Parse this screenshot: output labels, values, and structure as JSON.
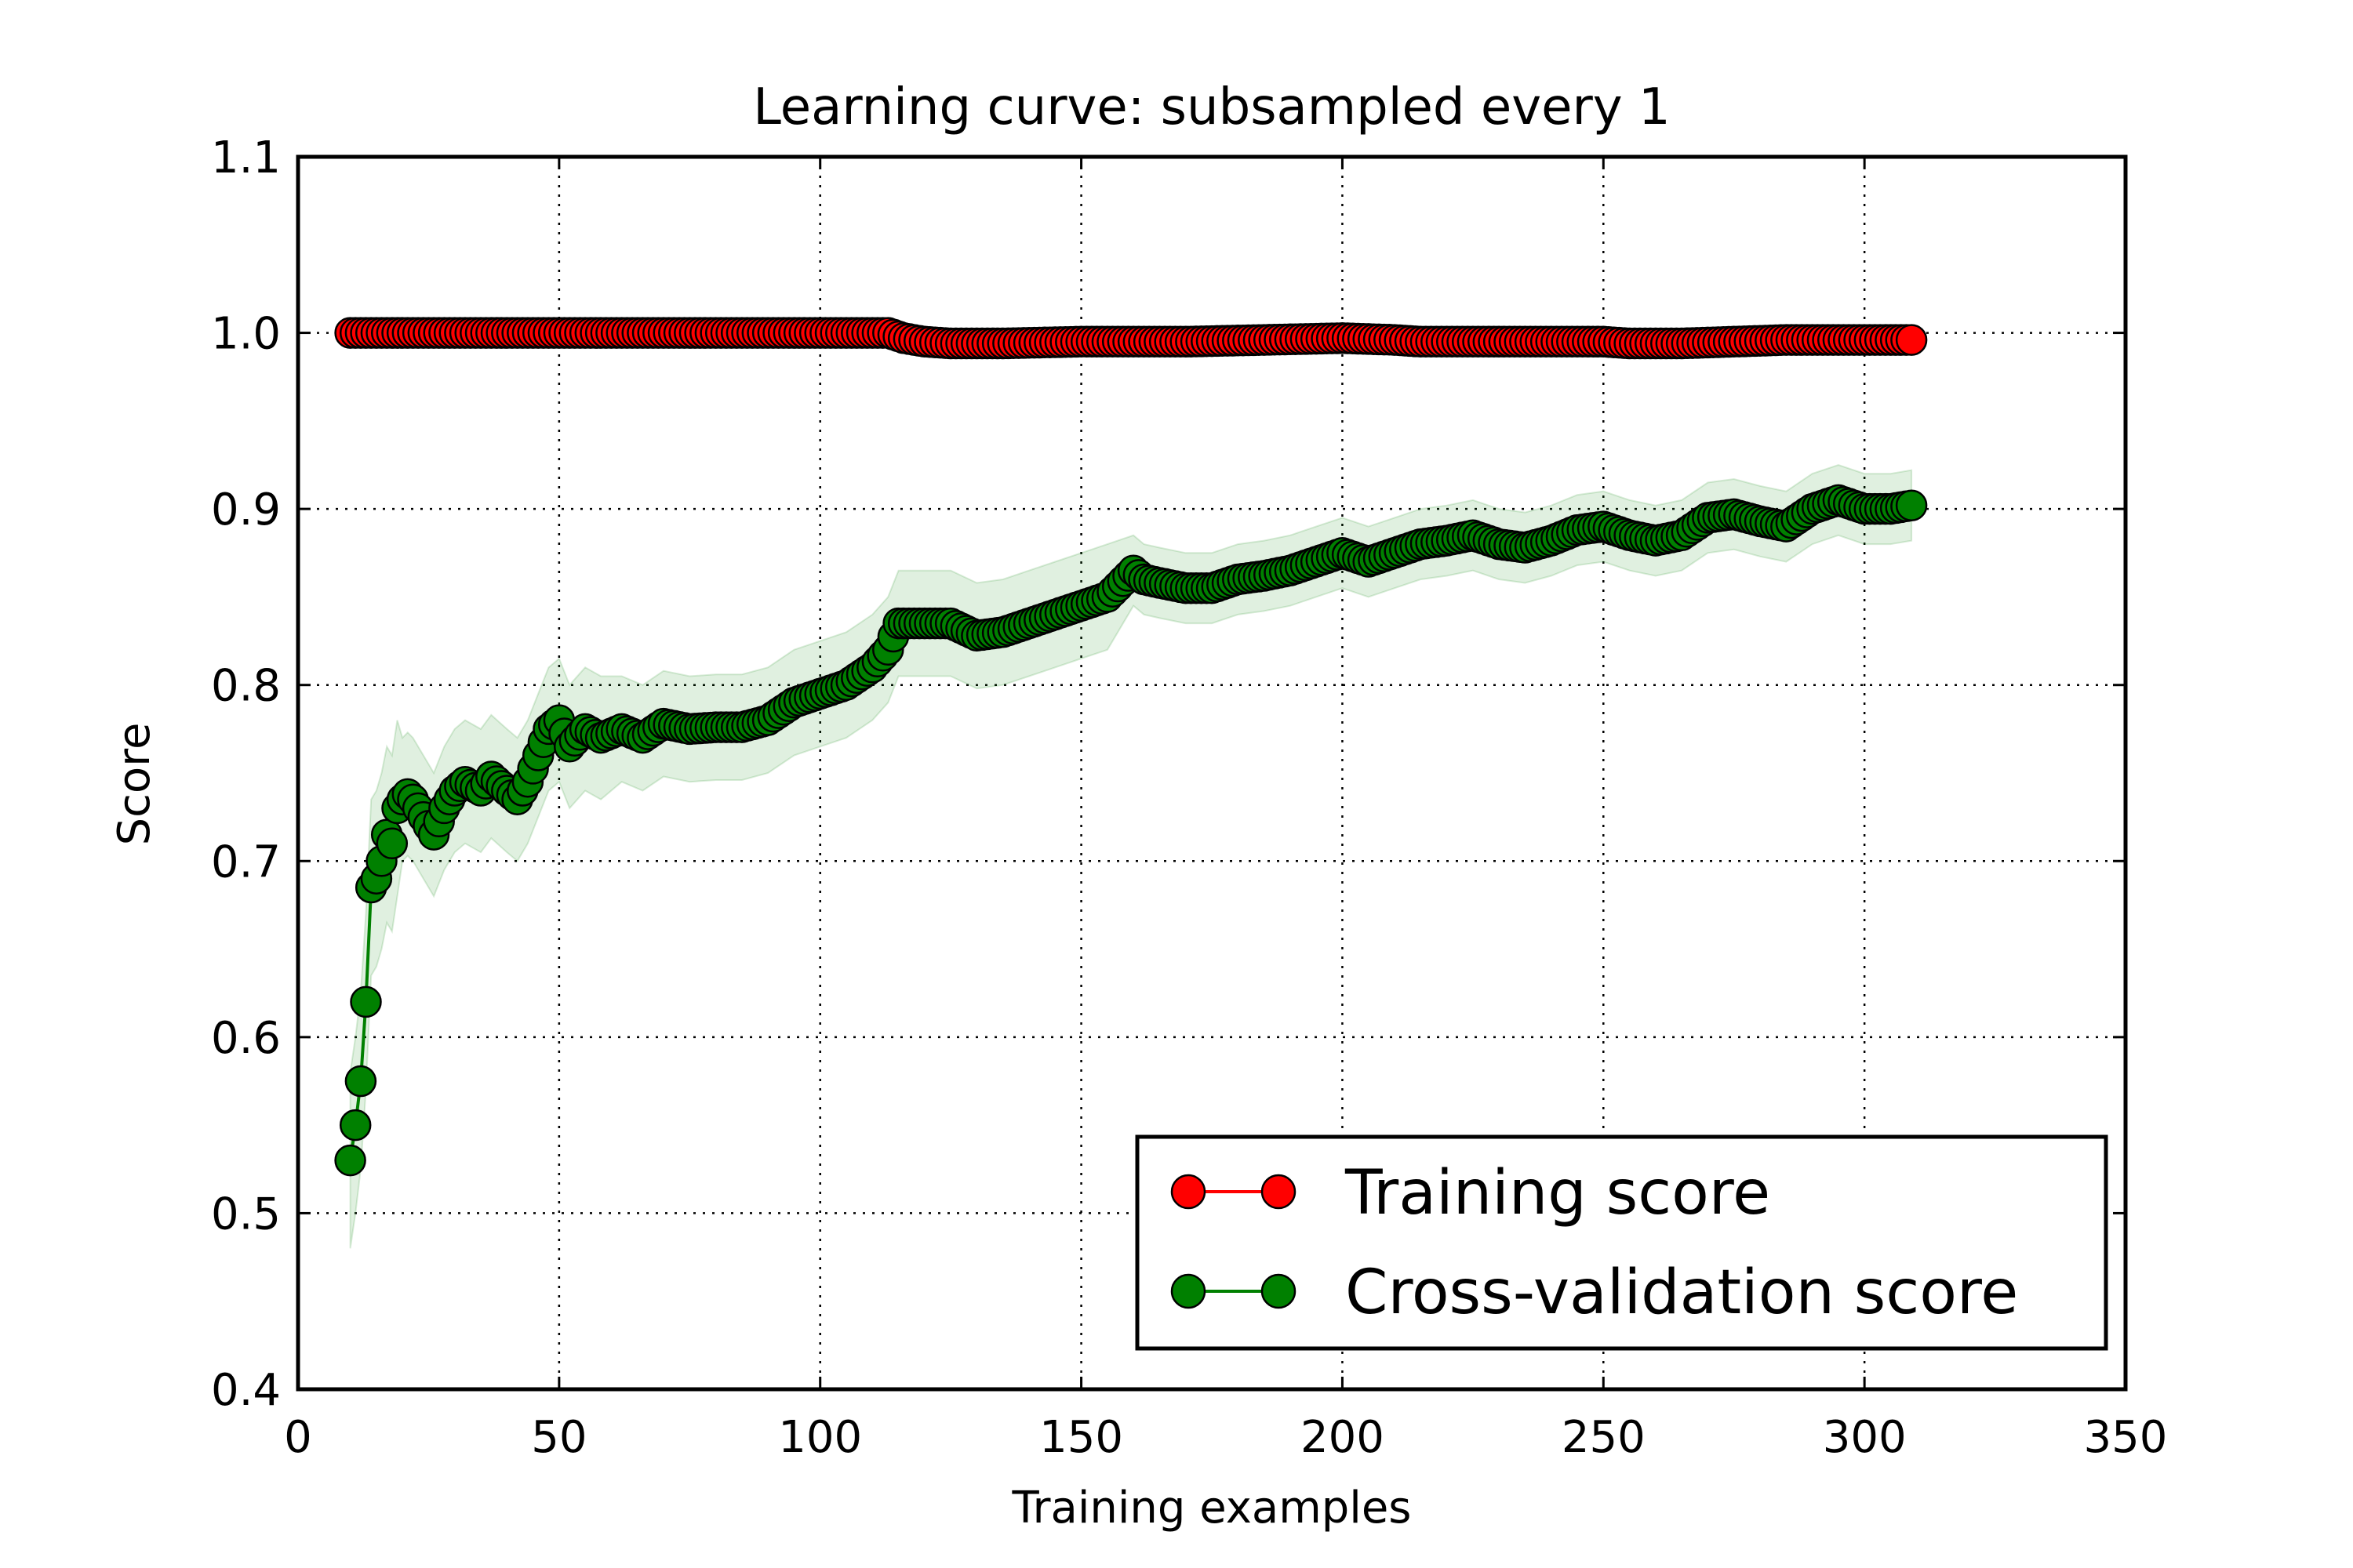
{
  "chart_data": {
    "type": "line",
    "title": "Learning curve: subsampled every 1",
    "xlabel": "Training examples",
    "ylabel": "Score",
    "xlim": [
      0,
      350
    ],
    "ylim": [
      0.4,
      1.1
    ],
    "xticks": [
      0,
      50,
      100,
      150,
      200,
      250,
      300,
      350
    ],
    "yticks": [
      0.4,
      0.5,
      0.6,
      0.7,
      0.8,
      0.9,
      1.0,
      1.1
    ],
    "xtick_labels": [
      "0",
      "50",
      "100",
      "150",
      "200",
      "250",
      "300",
      "350"
    ],
    "ytick_labels": [
      "0.4",
      "0.5",
      "0.6",
      "0.7",
      "0.8",
      "0.9",
      "1.0",
      "1.1"
    ],
    "grid": true,
    "legend_position": "lower-right",
    "series": [
      {
        "name": "Training score",
        "color": "#ff0000",
        "band": false,
        "points": [
          [
            10,
            1.0
          ],
          [
            30,
            1.0
          ],
          [
            50,
            1.0
          ],
          [
            70,
            1.0
          ],
          [
            90,
            1.0
          ],
          [
            110,
            1.0
          ],
          [
            113,
            1.0
          ],
          [
            116,
            0.997
          ],
          [
            120,
            0.995
          ],
          [
            125,
            0.994
          ],
          [
            135,
            0.994
          ],
          [
            150,
            0.995
          ],
          [
            170,
            0.995
          ],
          [
            185,
            0.996
          ],
          [
            200,
            0.997
          ],
          [
            210,
            0.996
          ],
          [
            215,
            0.995
          ],
          [
            230,
            0.995
          ],
          [
            250,
            0.995
          ],
          [
            255,
            0.994
          ],
          [
            265,
            0.994
          ],
          [
            275,
            0.995
          ],
          [
            285,
            0.996
          ],
          [
            300,
            0.996
          ],
          [
            309,
            0.996
          ]
        ]
      },
      {
        "name": "Cross-validation score",
        "color": "#008000",
        "band": true,
        "points": [
          [
            10,
            0.53
          ],
          [
            11,
            0.55
          ],
          [
            12,
            0.575
          ],
          [
            13,
            0.62
          ],
          [
            14,
            0.685
          ],
          [
            15,
            0.69
          ],
          [
            16,
            0.7
          ],
          [
            17,
            0.715
          ],
          [
            18,
            0.71
          ],
          [
            19,
            0.73
          ],
          [
            20,
            0.735
          ],
          [
            21,
            0.738
          ],
          [
            22,
            0.735
          ],
          [
            24,
            0.725
          ],
          [
            26,
            0.715
          ],
          [
            28,
            0.73
          ],
          [
            30,
            0.74
          ],
          [
            32,
            0.745
          ],
          [
            35,
            0.74
          ],
          [
            37,
            0.748
          ],
          [
            40,
            0.74
          ],
          [
            42,
            0.735
          ],
          [
            44,
            0.745
          ],
          [
            46,
            0.76
          ],
          [
            48,
            0.775
          ],
          [
            50,
            0.78
          ],
          [
            52,
            0.765
          ],
          [
            55,
            0.775
          ],
          [
            58,
            0.77
          ],
          [
            62,
            0.775
          ],
          [
            66,
            0.77
          ],
          [
            70,
            0.778
          ],
          [
            75,
            0.775
          ],
          [
            80,
            0.776
          ],
          [
            85,
            0.776
          ],
          [
            90,
            0.78
          ],
          [
            95,
            0.79
          ],
          [
            100,
            0.795
          ],
          [
            105,
            0.8
          ],
          [
            110,
            0.81
          ],
          [
            113,
            0.82
          ],
          [
            115,
            0.835
          ],
          [
            120,
            0.835
          ],
          [
            125,
            0.835
          ],
          [
            130,
            0.828
          ],
          [
            135,
            0.83
          ],
          [
            140,
            0.835
          ],
          [
            145,
            0.84
          ],
          [
            150,
            0.845
          ],
          [
            155,
            0.85
          ],
          [
            160,
            0.865
          ],
          [
            162,
            0.86
          ],
          [
            165,
            0.858
          ],
          [
            170,
            0.855
          ],
          [
            175,
            0.855
          ],
          [
            180,
            0.86
          ],
          [
            185,
            0.862
          ],
          [
            190,
            0.865
          ],
          [
            195,
            0.87
          ],
          [
            200,
            0.875
          ],
          [
            205,
            0.87
          ],
          [
            210,
            0.875
          ],
          [
            215,
            0.88
          ],
          [
            220,
            0.882
          ],
          [
            225,
            0.885
          ],
          [
            230,
            0.88
          ],
          [
            235,
            0.878
          ],
          [
            240,
            0.882
          ],
          [
            245,
            0.888
          ],
          [
            250,
            0.89
          ],
          [
            255,
            0.885
          ],
          [
            260,
            0.882
          ],
          [
            265,
            0.885
          ],
          [
            270,
            0.895
          ],
          [
            275,
            0.897
          ],
          [
            280,
            0.893
          ],
          [
            285,
            0.89
          ],
          [
            290,
            0.9
          ],
          [
            295,
            0.905
          ],
          [
            300,
            0.9
          ],
          [
            305,
            0.9
          ],
          [
            309,
            0.902
          ]
        ]
      }
    ]
  }
}
